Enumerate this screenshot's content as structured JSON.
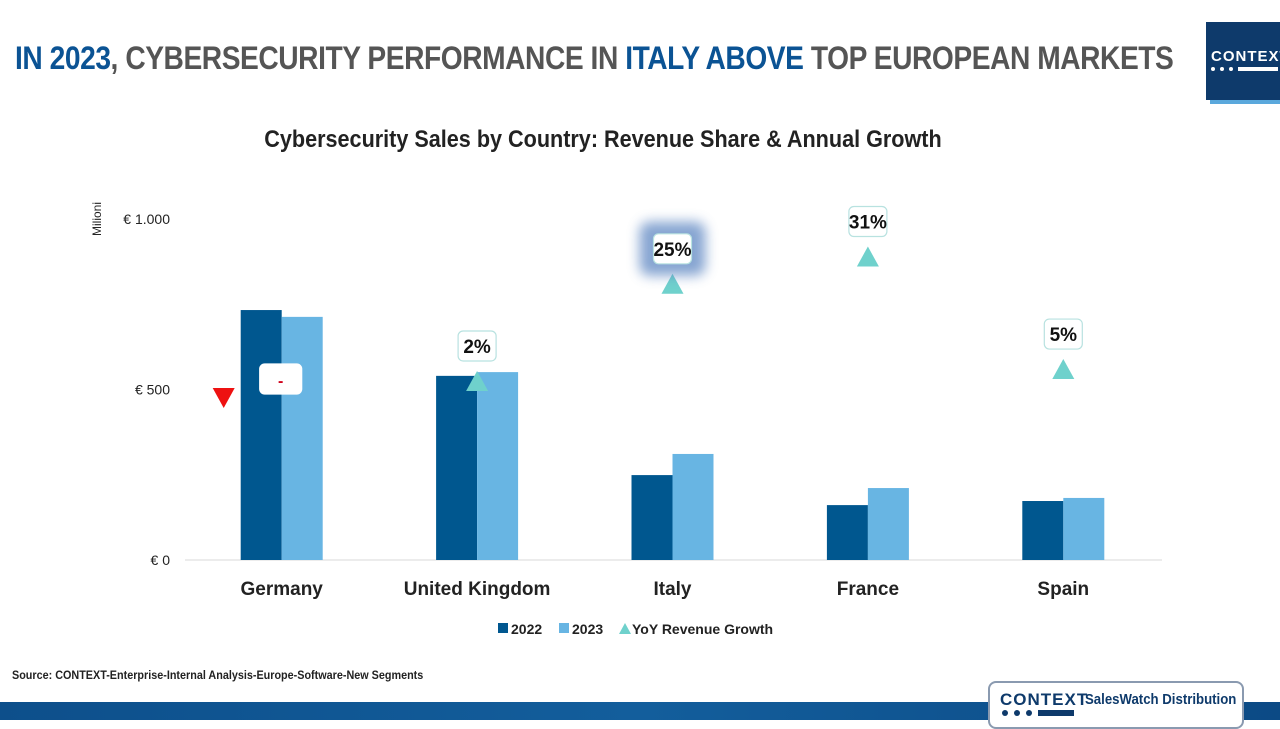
{
  "headline": {
    "parts": [
      {
        "text": "IN 2023",
        "highlight": true
      },
      {
        "text": ", CYBERSECURITY PERFORMANCE IN ",
        "highlight": false
      },
      {
        "text": "ITALY ABOVE",
        "highlight": true
      },
      {
        "text": " TOP EUROPEAN MARKETS",
        "highlight": false
      }
    ]
  },
  "logo": {
    "name": "CONTEXT",
    "product": "SalesWatch Distribution"
  },
  "source": "Source: CONTEXT-Enterprise-Internal Analysis-Europe-Software-New Segments",
  "colors": {
    "s2022": "#00578f",
    "s2023": "#68b5e3",
    "growth_up": "#6fd1cc",
    "growth_down": "#ee1111",
    "highlight": "#0b5394"
  },
  "chart_data": {
    "type": "bar",
    "title": "Cybersecurity Sales by Country: Revenue Share & Annual Growth",
    "xlabel": "",
    "ylabel": "Milioni",
    "ylim": [
      0,
      1000
    ],
    "yticks": [
      {
        "value": 0,
        "label": "€ 0"
      },
      {
        "value": 500,
        "label": "€ 500"
      },
      {
        "value": 1000,
        "label": "€ 1.000"
      }
    ],
    "grid": false,
    "categories": [
      "Germany",
      "United Kingdom",
      "Italy",
      "France",
      "Spain"
    ],
    "series": [
      {
        "name": "2022",
        "values": [
          733,
          540,
          249,
          161,
          173
        ]
      },
      {
        "name": "2023",
        "values": [
          713,
          551,
          311,
          211,
          182
        ]
      }
    ],
    "growth": {
      "name": "YoY Revenue Growth",
      "labels": [
        "-",
        "2%",
        "25%",
        "31%",
        "5%"
      ],
      "direction": [
        "down",
        "up",
        "up",
        "up",
        "up"
      ],
      "marker_level": [
        475,
        525,
        810,
        890,
        560
      ],
      "highlighted": [
        false,
        false,
        true,
        false,
        false
      ]
    },
    "legend": {
      "position": "bottom",
      "entries": [
        "2022",
        "2023",
        "YoY Revenue Growth"
      ]
    }
  }
}
